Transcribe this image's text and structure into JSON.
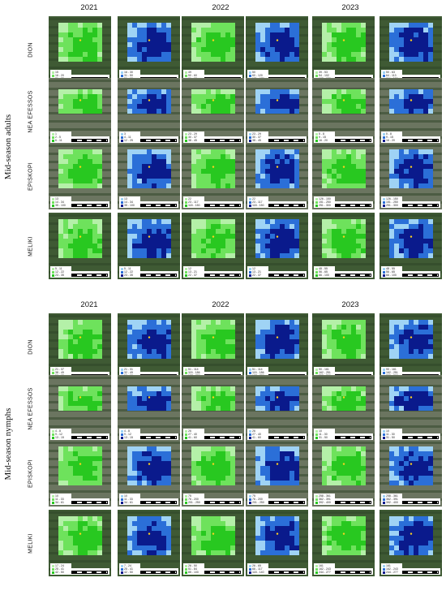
{
  "sections": [
    {
      "id": "adults",
      "label": "Mid-season adults",
      "years": [
        "2021",
        "2022",
        "2023"
      ],
      "rows": [
        {
          "site": "DION",
          "legends": [
            [
              "15",
              "16 - 20",
              "21 - 25"
            ],
            [
              "16 - 30",
              "31 - 50",
              "51 - 60"
            ],
            [
              "49",
              "50 - 60",
              "61 - 90"
            ],
            [
              "50",
              "60 - 120",
              "121 - 176"
            ],
            [
              "39 - 53",
              "54 - 102",
              "103 - 150"
            ],
            [
              "50 - 63",
              "64 - 113",
              "114 - 150"
            ]
          ]
        },
        {
          "site": "NEA EFESSOS",
          "legends": [
            [
              "1",
              "2 - 5",
              "6 - 11"
            ],
            [
              "3",
              "4 - 11",
              "12 - 25"
            ],
            [
              "23 - 29",
              "30 - 37",
              "38 - 45"
            ],
            [
              "23 - 29",
              "30 - 37",
              "38 - 45"
            ],
            [
              "5 - 8",
              "9 - 15",
              "16 - 20"
            ],
            [
              "5 - 8",
              "9 - 15",
              "16 - 20"
            ]
          ]
        },
        {
          "site": "EPISKOPI",
          "legends": [
            [
              "13",
              "14 - 34",
              "35 - 100"
            ],
            [
              "13",
              "14 - 34",
              "35 - 100"
            ],
            [
              "22",
              "23 - 117",
              "118 - 150"
            ],
            [
              "22",
              "23 - 117",
              "118 - 150"
            ],
            [
              "126 - 150",
              "151 - 250",
              "251 - 300"
            ],
            [
              "126 - 150",
              "151 - 250",
              "251 - 300"
            ]
          ]
        },
        {
          "site": "MELIKI",
          "legends": [
            [
              "5 - 11",
              "12 - 22",
              "23 - 35"
            ],
            [
              "5 - 11",
              "12 - 22",
              "23 - 35"
            ],
            [
              "12",
              "13 - 21",
              "22 - 37"
            ],
            [
              "12",
              "13 - 21",
              "22 - 37"
            ],
            [
              "48 - 55",
              "56 - 65",
              "66 - 100"
            ],
            [
              "48 - 55",
              "56 - 65",
              "66 - 100"
            ]
          ]
        }
      ]
    },
    {
      "id": "nymphs",
      "label": "Mid-season nymphs",
      "years": [
        "2021",
        "2022",
        "2023"
      ],
      "rows": [
        {
          "site": "DION",
          "legends": [
            [
              "21 - 37",
              "38 - 49",
              "50 - 65"
            ],
            [
              "21 - 31",
              "32 - 49",
              "50 - 60"
            ],
            [
              "51 - 114",
              "115 - 186",
              "187 - 220"
            ],
            [
              "51 - 114",
              "115 - 186",
              "187 - 220"
            ],
            [
              "90 - 161",
              "162 - 251",
              "252 - 300"
            ],
            [
              "90 - 161",
              "162 - 251",
              "252 - 300"
            ]
          ]
        },
        {
          "site": "NEA EFESSOS",
          "legends": [
            [
              "4 - 8",
              "9 - 12",
              "13 - 15"
            ],
            [
              "4 - 8",
              "9 - 12",
              "13 - 15"
            ],
            [
              "26",
              "27 - 40",
              "41 - 60"
            ],
            [
              "26",
              "27 - 40",
              "41 - 60"
            ],
            [
              "10",
              "11 - 30",
              "31 - 50"
            ],
            [
              "10",
              "11 - 30",
              "31 - 50"
            ]
          ]
        },
        {
          "site": "EPISKOPI",
          "legends": [
            [
              "10",
              "11 - 33",
              "34 - 61"
            ],
            [
              "10",
              "11 - 33",
              "34 - 61"
            ],
            [
              "75",
              "76 - 200",
              "201 - 250"
            ],
            [
              "75",
              "76 - 200",
              "201 - 250"
            ],
            [
              "258 - 361",
              "362 - 391",
              "392 - 400"
            ],
            [
              "258 - 361",
              "362 - 391",
              "392 - 400"
            ]
          ]
        },
        {
          "site": "MELIKI",
          "legends": [
            [
              "17 - 24",
              "25 - 41",
              "42 - 50"
            ],
            [
              "7 - 24",
              "25 - 41",
              "42 - 50"
            ],
            [
              "26 - 50",
              "51 - 84",
              "85 - 100"
            ],
            [
              "26 - 65",
              "66 - 117",
              "118 - 140"
            ],
            [
              "161",
              "162 - 243",
              "244 - 277"
            ],
            [
              "161",
              "162 - 243",
              "244 - 277"
            ]
          ]
        }
      ]
    }
  ],
  "colors": {
    "green": [
      "#b4f0a8",
      "#6ee25c",
      "#28c820"
    ],
    "blue": [
      "#9fd3f5",
      "#2b6fd8",
      "#0a1a8c"
    ]
  }
}
